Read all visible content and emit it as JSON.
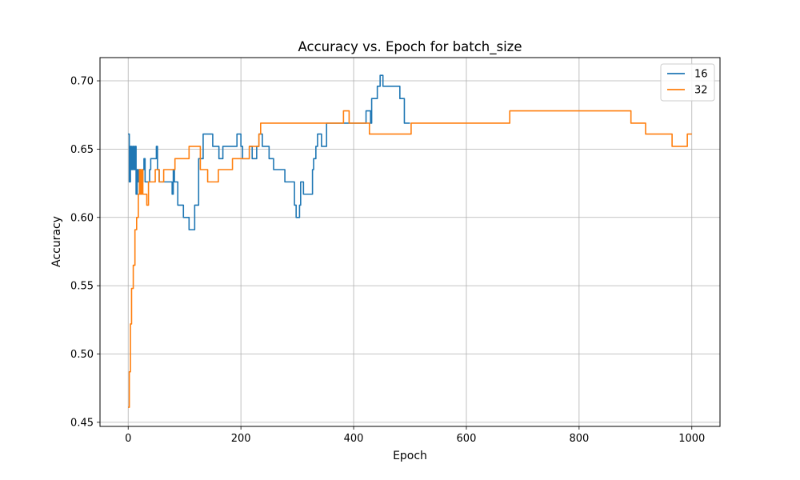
{
  "chart_data": {
    "type": "line",
    "title": "Accuracy vs. Epoch for batch_size",
    "xlabel": "Epoch",
    "ylabel": "Accuracy",
    "xlim": [
      -50,
      1050
    ],
    "ylim": [
      0.447,
      0.717
    ],
    "xticks": [
      0,
      200,
      400,
      600,
      800,
      1000
    ],
    "yticks": [
      0.45,
      0.5,
      0.55,
      0.6,
      0.65,
      0.7
    ],
    "ytick_labels": [
      "0.45",
      "0.50",
      "0.55",
      "0.60",
      "0.65",
      "0.70"
    ],
    "grid": true,
    "legend_position": "top-right",
    "series": [
      {
        "name": "16",
        "color": "#1f77b4",
        "points": [
          [
            0,
            0.661
          ],
          [
            2,
            0.626
          ],
          [
            4,
            0.652
          ],
          [
            6,
            0.635
          ],
          [
            8,
            0.652
          ],
          [
            10,
            0.635
          ],
          [
            12,
            0.652
          ],
          [
            14,
            0.617
          ],
          [
            16,
            0.635
          ],
          [
            18,
            0.626
          ],
          [
            20,
            0.635
          ],
          [
            22,
            0.617
          ],
          [
            24,
            0.626
          ],
          [
            26,
            0.635
          ],
          [
            28,
            0.643
          ],
          [
            30,
            0.626
          ],
          [
            35,
            0.626
          ],
          [
            38,
            0.635
          ],
          [
            40,
            0.643
          ],
          [
            48,
            0.643
          ],
          [
            50,
            0.652
          ],
          [
            52,
            0.635
          ],
          [
            55,
            0.626
          ],
          [
            75,
            0.626
          ],
          [
            78,
            0.617
          ],
          [
            80,
            0.635
          ],
          [
            82,
            0.626
          ],
          [
            85,
            0.626
          ],
          [
            88,
            0.609
          ],
          [
            95,
            0.609
          ],
          [
            98,
            0.6
          ],
          [
            105,
            0.6
          ],
          [
            108,
            0.591
          ],
          [
            115,
            0.591
          ],
          [
            118,
            0.609
          ],
          [
            122,
            0.609
          ],
          [
            125,
            0.643
          ],
          [
            130,
            0.643
          ],
          [
            133,
            0.661
          ],
          [
            148,
            0.661
          ],
          [
            150,
            0.652
          ],
          [
            158,
            0.652
          ],
          [
            161,
            0.643
          ],
          [
            165,
            0.643
          ],
          [
            168,
            0.652
          ],
          [
            190,
            0.652
          ],
          [
            193,
            0.661
          ],
          [
            197,
            0.661
          ],
          [
            200,
            0.652
          ],
          [
            203,
            0.643
          ],
          [
            210,
            0.643
          ],
          [
            215,
            0.652
          ],
          [
            220,
            0.643
          ],
          [
            225,
            0.643
          ],
          [
            228,
            0.652
          ],
          [
            232,
            0.661
          ],
          [
            236,
            0.661
          ],
          [
            238,
            0.652
          ],
          [
            248,
            0.652
          ],
          [
            250,
            0.643
          ],
          [
            255,
            0.643
          ],
          [
            258,
            0.635
          ],
          [
            275,
            0.635
          ],
          [
            278,
            0.626
          ],
          [
            292,
            0.626
          ],
          [
            295,
            0.609
          ],
          [
            298,
            0.6
          ],
          [
            302,
            0.6
          ],
          [
            304,
            0.609
          ],
          [
            306,
            0.626
          ],
          [
            309,
            0.626
          ],
          [
            311,
            0.617
          ],
          [
            325,
            0.617
          ],
          [
            327,
            0.635
          ],
          [
            329,
            0.643
          ],
          [
            333,
            0.652
          ],
          [
            336,
            0.661
          ],
          [
            340,
            0.661
          ],
          [
            343,
            0.652
          ],
          [
            350,
            0.652
          ],
          [
            352,
            0.669
          ],
          [
            395,
            0.669
          ],
          [
            398,
            0.669
          ],
          [
            402,
            0.669
          ],
          [
            405,
            0.669
          ],
          [
            420,
            0.669
          ],
          [
            422,
            0.678
          ],
          [
            428,
            0.678
          ],
          [
            430,
            0.669
          ],
          [
            432,
            0.687
          ],
          [
            440,
            0.687
          ],
          [
            442,
            0.696
          ],
          [
            445,
            0.696
          ],
          [
            447,
            0.704
          ],
          [
            450,
            0.704
          ],
          [
            452,
            0.696
          ],
          [
            480,
            0.696
          ],
          [
            482,
            0.687
          ],
          [
            488,
            0.687
          ],
          [
            490,
            0.669
          ],
          [
            500,
            0.669
          ]
        ]
      },
      {
        "name": "32",
        "color": "#ff7f0e",
        "points": [
          [
            0,
            0.461
          ],
          [
            2,
            0.487
          ],
          [
            4,
            0.522
          ],
          [
            6,
            0.548
          ],
          [
            9,
            0.565
          ],
          [
            12,
            0.591
          ],
          [
            15,
            0.6
          ],
          [
            18,
            0.617
          ],
          [
            20,
            0.635
          ],
          [
            22,
            0.617
          ],
          [
            24,
            0.635
          ],
          [
            26,
            0.617
          ],
          [
            30,
            0.617
          ],
          [
            33,
            0.609
          ],
          [
            36,
            0.626
          ],
          [
            45,
            0.626
          ],
          [
            48,
            0.635
          ],
          [
            52,
            0.635
          ],
          [
            55,
            0.626
          ],
          [
            60,
            0.626
          ],
          [
            63,
            0.635
          ],
          [
            80,
            0.635
          ],
          [
            83,
            0.643
          ],
          [
            105,
            0.643
          ],
          [
            108,
            0.652
          ],
          [
            125,
            0.652
          ],
          [
            128,
            0.635
          ],
          [
            138,
            0.635
          ],
          [
            141,
            0.626
          ],
          [
            158,
            0.626
          ],
          [
            160,
            0.635
          ],
          [
            182,
            0.635
          ],
          [
            185,
            0.643
          ],
          [
            212,
            0.643
          ],
          [
            215,
            0.652
          ],
          [
            230,
            0.652
          ],
          [
            232,
            0.661
          ],
          [
            235,
            0.669
          ],
          [
            380,
            0.669
          ],
          [
            382,
            0.678
          ],
          [
            390,
            0.678
          ],
          [
            392,
            0.669
          ],
          [
            425,
            0.669
          ],
          [
            428,
            0.661
          ],
          [
            500,
            0.661
          ],
          [
            502,
            0.669
          ],
          [
            675,
            0.669
          ],
          [
            677,
            0.678
          ],
          [
            890,
            0.678
          ],
          [
            892,
            0.669
          ],
          [
            915,
            0.669
          ],
          [
            918,
            0.661
          ],
          [
            962,
            0.661
          ],
          [
            965,
            0.652
          ],
          [
            990,
            0.652
          ],
          [
            992,
            0.661
          ],
          [
            1000,
            0.661
          ]
        ]
      }
    ]
  }
}
